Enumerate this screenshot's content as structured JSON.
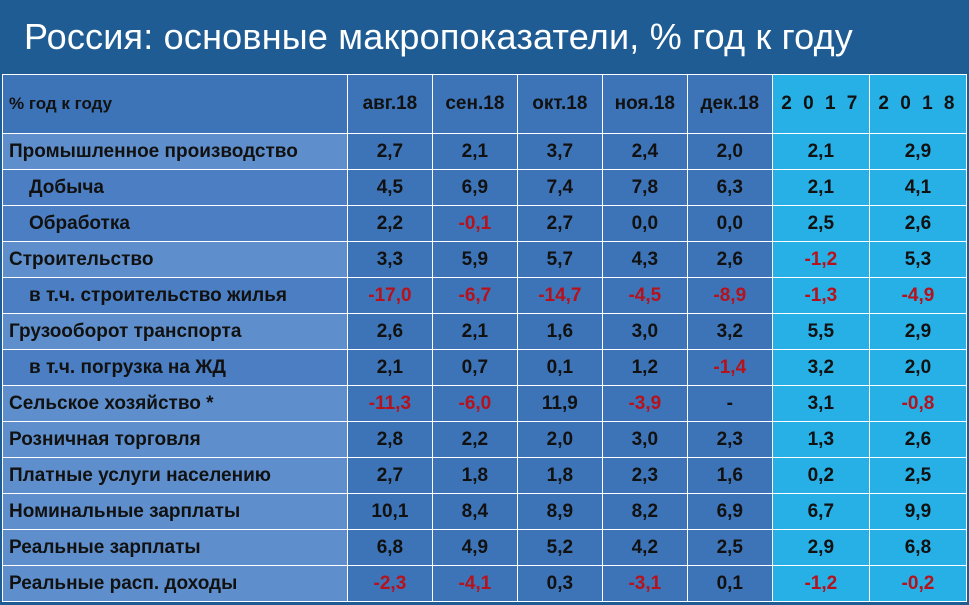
{
  "title": "Россия: основные макропоказатели, % год к году",
  "colors": {
    "background": "#1f5c93",
    "month_cells": "#3d74b8",
    "year_cells": "#26b0e6",
    "negative_text": "#b5121b"
  },
  "table": {
    "header_label": "% год к году",
    "columns": [
      "авг.18",
      "сен.18",
      "окт.18",
      "ноя.18",
      "дек.18",
      "2 0 1 7",
      "2 0 1 8"
    ],
    "rows": [
      {
        "label": "Промышленное производство",
        "values": [
          "2,7",
          "2,1",
          "3,7",
          "2,4",
          "2,0",
          "2,1",
          "2,9"
        ]
      },
      {
        "label": "Добыча",
        "values": [
          "4,5",
          "6,9",
          "7,4",
          "7,8",
          "6,3",
          "2,1",
          "4,1"
        ]
      },
      {
        "label": "Обработка",
        "values": [
          "2,2",
          "-0,1",
          "2,7",
          "0,0",
          "0,0",
          "2,5",
          "2,6"
        ]
      },
      {
        "label": "Строительство",
        "values": [
          "3,3",
          "5,9",
          "5,7",
          "4,3",
          "2,6",
          "-1,2",
          "5,3"
        ]
      },
      {
        "label": "в т.ч. строительство жилья",
        "values": [
          "-17,0",
          "-6,7",
          "-14,7",
          "-4,5",
          "-8,9",
          "-1,3",
          "-4,9"
        ]
      },
      {
        "label": "Грузооборот транспорта",
        "values": [
          "2,6",
          "2,1",
          "1,6",
          "3,0",
          "3,2",
          "5,5",
          "2,9"
        ]
      },
      {
        "label": "в т.ч. погрузка на ЖД",
        "values": [
          "2,1",
          "0,7",
          "0,1",
          "1,2",
          "-1,4",
          "3,2",
          "2,0"
        ]
      },
      {
        "label": "Сельское хозяйство *",
        "values": [
          "-11,3",
          "-6,0",
          "11,9",
          "-3,9",
          "-",
          "3,1",
          "-0,8"
        ]
      },
      {
        "label": "Розничная торговля",
        "values": [
          "2,8",
          "2,2",
          "2,0",
          "3,0",
          "2,3",
          "1,3",
          "2,6"
        ]
      },
      {
        "label": "Платные услуги населению",
        "values": [
          "2,7",
          "1,8",
          "1,8",
          "2,3",
          "1,6",
          "0,2",
          "2,5"
        ]
      },
      {
        "label": "Номинальные зарплаты",
        "values": [
          "10,1",
          "8,4",
          "8,9",
          "8,2",
          "6,9",
          "6,7",
          "9,9"
        ]
      },
      {
        "label": "Реальные зарплаты",
        "values": [
          "6,8",
          "4,9",
          "5,2",
          "4,2",
          "2,5",
          "2,9",
          "6,8"
        ]
      },
      {
        "label": "Реальные расп. доходы",
        "values": [
          "-2,3",
          "-4,1",
          "0,3",
          "-3,1",
          "0,1",
          "-1,2",
          "-0,2"
        ]
      }
    ]
  }
}
